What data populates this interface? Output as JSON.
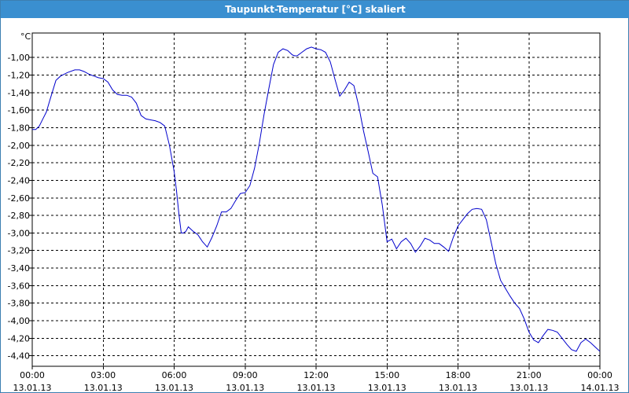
{
  "window": {
    "title": "Taupunkt-Temperatur [°C] skaliert"
  },
  "chart_data": {
    "type": "line",
    "title": "Taupunkt-Temperatur [°C] skaliert",
    "ylabel": "°C",
    "xlabel": "",
    "grid": true,
    "ylim": [
      -4.52,
      -0.72
    ],
    "xlim": [
      0,
      24
    ],
    "y_ticks": [
      -1.0,
      -1.2,
      -1.4,
      -1.6,
      -1.8,
      -2.0,
      -2.2,
      -2.4,
      -2.6,
      -2.8,
      -3.0,
      -3.2,
      -3.4,
      -3.6,
      -3.8,
      -4.0,
      -4.2,
      -4.4
    ],
    "y_tick_labels": [
      "-1,00",
      "-1,20",
      "-1,40",
      "-1,60",
      "-1,80",
      "-2,00",
      "-2,20",
      "-2,40",
      "-2,60",
      "-2,80",
      "-3,00",
      "-3,20",
      "-3,40",
      "-3,60",
      "-3,80",
      "-4,00",
      "-4,20",
      "-4,40"
    ],
    "x_ticks": [
      0,
      3,
      6,
      9,
      12,
      15,
      18,
      21,
      24
    ],
    "x_tick_times": [
      "00:00",
      "03:00",
      "06:00",
      "09:00",
      "12:00",
      "15:00",
      "18:00",
      "21:00",
      "00:00"
    ],
    "x_tick_dates": [
      "13.01.13",
      "13.01.13",
      "13.01.13",
      "13.01.13",
      "13.01.13",
      "13.01.13",
      "13.01.13",
      "13.01.13",
      "14.01.13"
    ],
    "series": [
      {
        "color": "#0000cc",
        "x": [
          0,
          0.15,
          0.3,
          0.45,
          0.6,
          0.75,
          1.0,
          1.2,
          1.5,
          1.8,
          2.0,
          2.2,
          2.4,
          2.6,
          2.8,
          3.0,
          3.2,
          3.4,
          3.6,
          3.8,
          4.0,
          4.2,
          4.4,
          4.6,
          4.8,
          5.0,
          5.2,
          5.4,
          5.6,
          5.8,
          6.0,
          6.1,
          6.2,
          6.3,
          6.4,
          6.5,
          6.6,
          6.8,
          7.0,
          7.2,
          7.4,
          7.6,
          7.8,
          8.0,
          8.2,
          8.4,
          8.6,
          8.8,
          9.0,
          9.2,
          9.4,
          9.6,
          9.8,
          10.0,
          10.2,
          10.4,
          10.6,
          10.8,
          11.0,
          11.1,
          11.2,
          11.4,
          11.6,
          11.8,
          12.0,
          12.2,
          12.4,
          12.6,
          12.8,
          13.0,
          13.2,
          13.4,
          13.6,
          13.8,
          14.0,
          14.2,
          14.4,
          14.6,
          14.8,
          15.0,
          15.2,
          15.4,
          15.6,
          15.8,
          16.0,
          16.2,
          16.4,
          16.6,
          16.8,
          17.0,
          17.2,
          17.4,
          17.6,
          17.8,
          18.0,
          18.2,
          18.4,
          18.6,
          18.8,
          19.0,
          19.2,
          19.4,
          19.6,
          19.8,
          20.0,
          20.2,
          20.4,
          20.6,
          20.8,
          21.0,
          21.2,
          21.4,
          21.6,
          21.8,
          22.0,
          22.2,
          22.4,
          22.6,
          22.8,
          23.0,
          23.2,
          23.4,
          23.6,
          23.8,
          24.0
        ],
        "y": [
          -1.82,
          -1.82,
          -1.78,
          -1.7,
          -1.62,
          -1.48,
          -1.26,
          -1.21,
          -1.17,
          -1.14,
          -1.14,
          -1.16,
          -1.19,
          -1.21,
          -1.23,
          -1.24,
          -1.28,
          -1.37,
          -1.42,
          -1.43,
          -1.43,
          -1.45,
          -1.52,
          -1.66,
          -1.7,
          -1.71,
          -1.72,
          -1.74,
          -1.78,
          -2.0,
          -2.3,
          -2.52,
          -2.78,
          -3.0,
          -3.0,
          -2.98,
          -2.93,
          -2.98,
          -3.02,
          -3.1,
          -3.16,
          -3.05,
          -2.92,
          -2.76,
          -2.76,
          -2.72,
          -2.63,
          -2.55,
          -2.54,
          -2.46,
          -2.26,
          -1.98,
          -1.65,
          -1.36,
          -1.08,
          -0.94,
          -0.9,
          -0.92,
          -0.97,
          -0.98,
          -0.98,
          -0.94,
          -0.9,
          -0.88,
          -0.9,
          -0.91,
          -0.94,
          -1.05,
          -1.25,
          -1.44,
          -1.37,
          -1.28,
          -1.32,
          -1.55,
          -1.83,
          -2.07,
          -2.32,
          -2.36,
          -2.68,
          -3.1,
          -3.07,
          -3.18,
          -3.1,
          -3.06,
          -3.12,
          -3.22,
          -3.15,
          -3.06,
          -3.08,
          -3.12,
          -3.12,
          -3.16,
          -3.21,
          -3.05,
          -2.92,
          -2.85,
          -2.78,
          -2.73,
          -2.72,
          -2.73,
          -2.85,
          -3.1,
          -3.35,
          -3.54,
          -3.63,
          -3.72,
          -3.8,
          -3.86,
          -3.98,
          -4.13,
          -4.22,
          -4.25,
          -4.17,
          -4.1,
          -4.11,
          -4.13,
          -4.2,
          -4.27,
          -4.33,
          -4.35,
          -4.25,
          -4.21,
          -4.25,
          -4.3,
          -4.35
        ]
      }
    ]
  }
}
